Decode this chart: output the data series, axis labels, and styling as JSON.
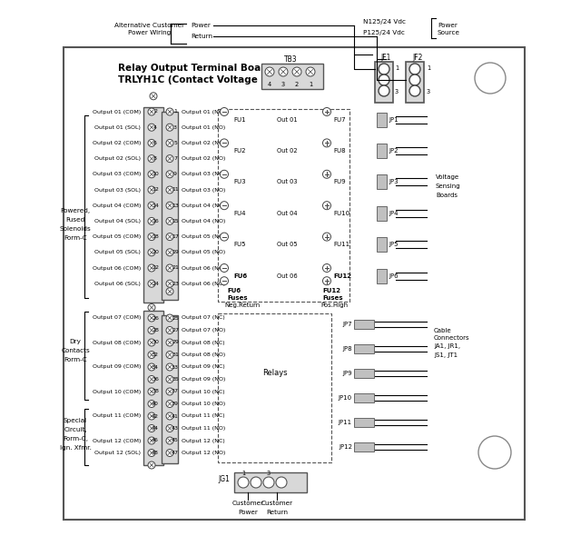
{
  "bg_color": "#ffffff",
  "board_title_line1": "Relay Output Terminal Board",
  "board_title_line2": "TRLYH1C (Contact Voltage Sensing)",
  "gray_fill": "#d8d8d8",
  "gray_connector": "#c0c0c0",
  "gray_dark": "#555555",
  "left_labels_top": [
    "Output 01 (COM)",
    "Output 01 (SOL)",
    "Output 02 (COM)",
    "Output 02 (SOL)",
    "Output 03 (COM)",
    "Output 03 (SOL)",
    "Output 04 (COM)",
    "Output 04 (SOL)",
    "Output 05 (COM)",
    "Output 05 (SOL)",
    "Output 06 (COM)",
    "Output 06 (SOL)"
  ],
  "left_pins_top": [
    2,
    4,
    6,
    8,
    10,
    12,
    14,
    16,
    18,
    20,
    22,
    24
  ],
  "right_labels_top": [
    "Output 01 (NC)",
    "Output 01 (NO)",
    "Output 02 (NC)",
    "Output 02 (NO)",
    "Output 03 (NC)",
    "Output 03 (NO)",
    "Output 04 (NC)",
    "Output 04 (NO)",
    "Output 05 (NC)",
    "Output 05 (NO)",
    "Output 06 (NC)",
    "Output 06 (NO)"
  ],
  "right_pins_top": [
    1,
    3,
    5,
    7,
    9,
    11,
    13,
    15,
    17,
    19,
    21,
    23
  ],
  "left_labels_bot": [
    "Output 07 (COM)",
    "",
    "Output 08 (COM)",
    "",
    "Output 09 (COM)",
    "",
    "Output 10 (COM)",
    "",
    "Output 11 (COM)",
    "",
    "Output 12 (COM)",
    "Output 12 (SOL)"
  ],
  "left_pins_bot": [
    26,
    28,
    30,
    32,
    34,
    36,
    38,
    40,
    42,
    44,
    46,
    48
  ],
  "right_labels_bot": [
    "Output 07 (NC)",
    "Output 07 (NO)",
    "Output 08 (NC)",
    "Output 08 (NO)",
    "Output 09 (NC)",
    "Output 09 (NO)",
    "Output 10 (NC)",
    "Output 10 (NO)",
    "Output 11 (NC)",
    "Output 11 (NO)",
    "Output 12 (NC)",
    "Output 12 (NO)"
  ],
  "right_pins_bot": [
    25,
    27,
    29,
    31,
    33,
    35,
    37,
    39,
    41,
    43,
    45,
    47
  ],
  "fuses_left": [
    "FU1",
    "FU2",
    "FU3",
    "FU4",
    "FU5",
    "FU6"
  ],
  "fuses_right": [
    "FU7",
    "FU8",
    "FU9",
    "FU10",
    "FU11",
    "FU12"
  ],
  "out_labels": [
    "Out 01",
    "Out 02",
    "Out 03",
    "Out 04",
    "Out 05",
    "Out 06"
  ],
  "jp_top": [
    "JP1",
    "JP2",
    "JP3",
    "JP4",
    "JP5",
    "JP6"
  ],
  "jp_bot": [
    "JP7",
    "JP8",
    "JP9",
    "JP10",
    "JP11",
    "JP12"
  ]
}
